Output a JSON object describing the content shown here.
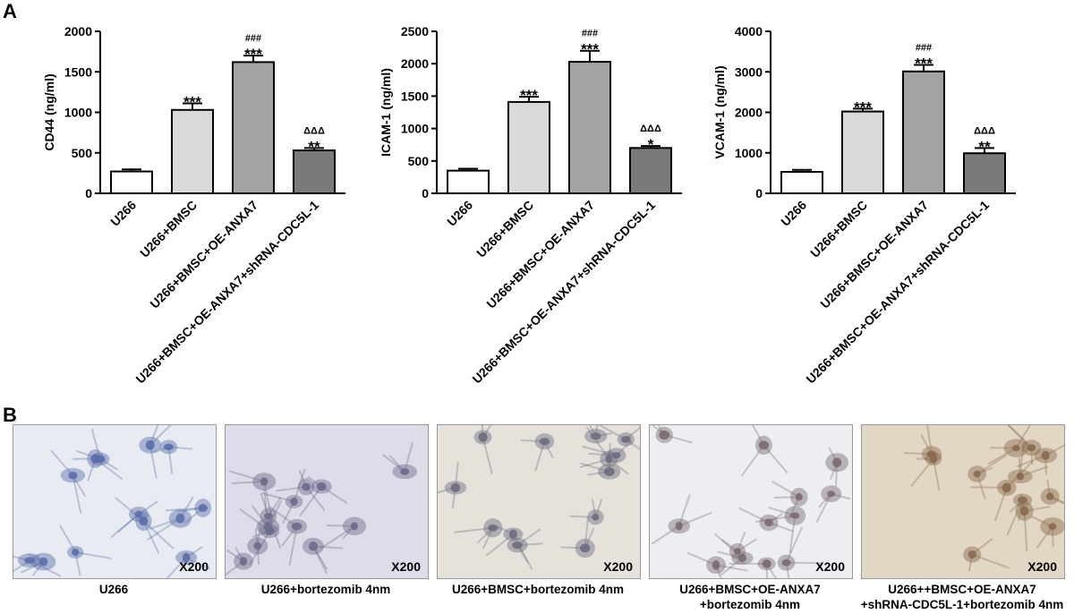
{
  "panel_labels": {
    "a": "A",
    "b": "B"
  },
  "chart_data": [
    {
      "type": "bar",
      "ylabel": "CD44 (ng/ml)",
      "ylim": [
        0,
        2000
      ],
      "yticks": [
        "0",
        "500",
        "1000",
        "1500",
        "2000"
      ],
      "categories": [
        "U266",
        "U266+BMSC",
        "U266+BMSC+OE-ANXA7",
        "U266+BMSC+OE-ANXA7+shRNA-CDC5L-1"
      ],
      "values": [
        270,
        1030,
        1620,
        530
      ],
      "errors": [
        25,
        80,
        80,
        30
      ],
      "annotations": [
        "",
        "***",
        "###\n***",
        "ΔΔΔ\n**"
      ],
      "colors": [
        "#ffffff",
        "#d9d9d9",
        "#a3a3a3",
        "#7a7a7a"
      ]
    },
    {
      "type": "bar",
      "ylabel": "ICAM-1 (ng/ml)",
      "ylim": [
        0,
        2500
      ],
      "yticks": [
        "0",
        "500",
        "1000",
        "1500",
        "2000",
        "2500"
      ],
      "categories": [
        "U266",
        "U266+BMSC",
        "U266+BMSC+OE-ANXA7",
        "U266+BMSC+OE-ANXA7+shRNA-CDC5L-1"
      ],
      "values": [
        350,
        1410,
        2030,
        700
      ],
      "errors": [
        30,
        80,
        170,
        30
      ],
      "annotations": [
        "",
        "***",
        "###\n***",
        "ΔΔΔ\n*"
      ],
      "colors": [
        "#ffffff",
        "#d9d9d9",
        "#a3a3a3",
        "#7a7a7a"
      ]
    },
    {
      "type": "bar",
      "ylabel": "VCAM-1 (ng/ml)",
      "ylim": [
        0,
        4000
      ],
      "yticks": [
        "0",
        "1000",
        "2000",
        "3000",
        "4000"
      ],
      "categories": [
        "U266",
        "U266+BMSC",
        "U266+BMSC+OE-ANXA7",
        "U266+BMSC+OE-ANXA7+shRNA-CDC5L-1"
      ],
      "values": [
        530,
        2020,
        3010,
        990
      ],
      "errors": [
        50,
        70,
        160,
        130
      ],
      "annotations": [
        "",
        "***",
        "###\n***",
        "ΔΔΔ\n**"
      ],
      "colors": [
        "#ffffff",
        "#d9d9d9",
        "#a3a3a3",
        "#7a7a7a"
      ]
    }
  ],
  "micrographs": [
    {
      "magnification": "X200",
      "caption": [
        "U266"
      ],
      "bg": "#e8ecf2",
      "cell": "#5a6fa8"
    },
    {
      "magnification": "X200",
      "caption": [
        "U266+bortezomib 4nm"
      ],
      "bg": "#dcdde8",
      "cell": "#6d6a8a"
    },
    {
      "magnification": "X200",
      "caption": [
        "U266+BMSC+bortezomib 4nm"
      ],
      "bg": "#e6e2db",
      "cell": "#6e6c80"
    },
    {
      "magnification": "X200",
      "caption": [
        "U266+BMSC+OE-ANXA7",
        "+bortezomib 4nm"
      ],
      "bg": "#eceef2",
      "cell": "#7a6a70"
    },
    {
      "magnification": "X200",
      "caption": [
        "U266++BMSC+OE-ANXA7",
        "+shRNA-CDC5L-1+bortezomib 4nm"
      ],
      "bg": "#e2d6c4",
      "cell": "#8a6a50"
    }
  ]
}
